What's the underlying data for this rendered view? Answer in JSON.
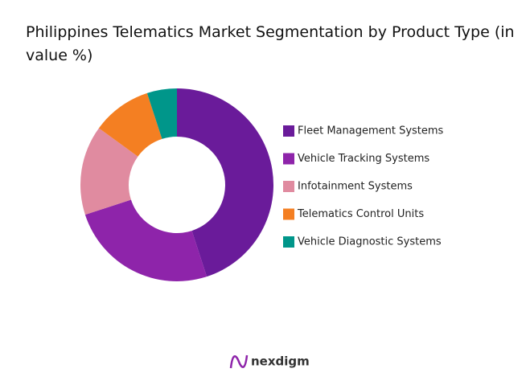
{
  "chart_data": {
    "type": "donut",
    "title": "Philippines Telematics Market Segmentation by Product Type (in value %)",
    "categories": [
      "Fleet Management Systems",
      "Vehicle Tracking Systems",
      "Infotainment Systems",
      "Telematics Control Units",
      "Vehicle Diagnostic Systems"
    ],
    "values": [
      45,
      25,
      15,
      10,
      5
    ],
    "colors": [
      "#6a1b9a",
      "#8e24aa",
      "#e08ba0",
      "#f47f22",
      "#00968a"
    ],
    "legend": "right"
  },
  "brand": "nexdigm"
}
